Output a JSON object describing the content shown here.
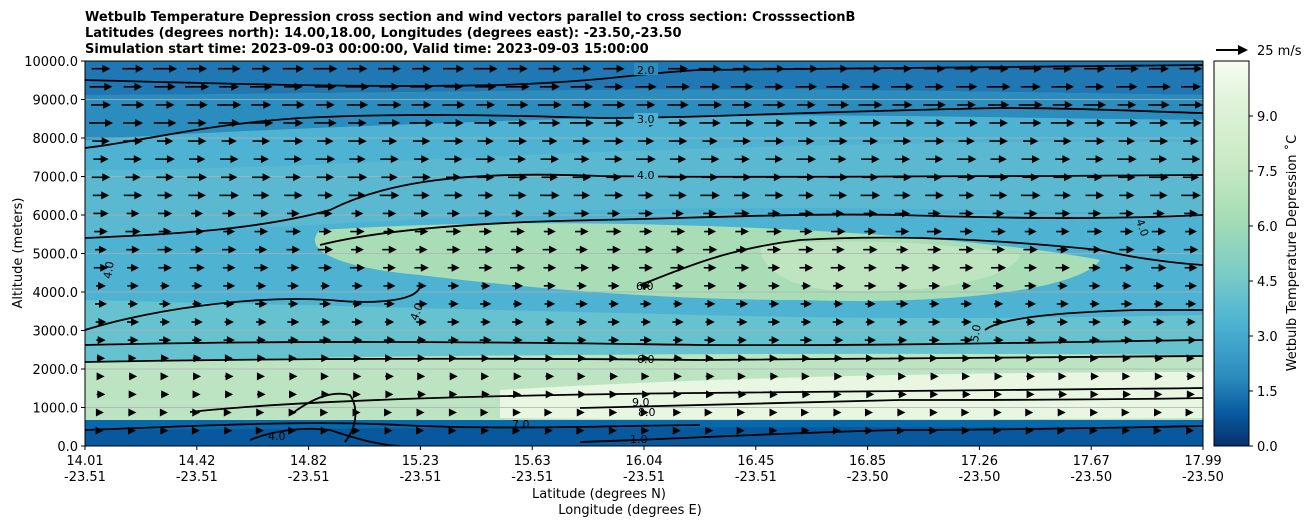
{
  "chart_data": {
    "type": "heatmap",
    "title_lines": [
      "Wetbulb Temperature Depression cross section and wind vectors parallel to cross section: CrosssectionB",
      "Latitudes (degrees north): 14.00,18.00, Longitudes (degrees east): -23.50,-23.50",
      "Simulation start time: 2023-09-03 00:00:00, Valid time: 2023-09-03 15:00:00"
    ],
    "ylabel": "Altitude (meters)",
    "xlabel_lines": [
      "Latitude (degrees N)",
      "Longitude (degrees E)"
    ],
    "ylim": [
      0,
      10000
    ],
    "y_ticks": [
      "0.0",
      "1000.0",
      "2000.0",
      "3000.0",
      "4000.0",
      "5000.0",
      "6000.0",
      "7000.0",
      "8000.0",
      "9000.0",
      "10000.0"
    ],
    "x_ticks": [
      {
        "lat": "14.01",
        "lon": "-23.51"
      },
      {
        "lat": "14.42",
        "lon": "-23.51"
      },
      {
        "lat": "14.82",
        "lon": "-23.51"
      },
      {
        "lat": "15.23",
        "lon": "-23.51"
      },
      {
        "lat": "15.63",
        "lon": "-23.51"
      },
      {
        "lat": "16.04",
        "lon": "-23.51"
      },
      {
        "lat": "16.45",
        "lon": "-23.51"
      },
      {
        "lat": "16.85",
        "lon": "-23.50"
      },
      {
        "lat": "17.26",
        "lon": "-23.50"
      },
      {
        "lat": "17.67",
        "lon": "-23.50"
      },
      {
        "lat": "17.99",
        "lon": "-23.50"
      }
    ],
    "colorbar": {
      "label": "Wetbulb Temperature Depression $^\\circ$C",
      "label_text": "Wetbulb Temperature Depression ˚C",
      "range": [
        0,
        10.5
      ],
      "tick_labels": [
        "0.0",
        "1.5",
        "3.0",
        "4.5",
        "6.0",
        "7.5",
        "9.0"
      ],
      "colormap": "GnBu_r"
    },
    "wind_key": {
      "label": "25 m/s"
    },
    "grid": true,
    "contour_labels": [
      "1.0",
      "2.0",
      "3.0",
      "4.0",
      "5.0",
      "6.0",
      "7.0",
      "8.0",
      "9.0"
    ],
    "field_description_values": {
      "surface_layer_0_500m": 1.0,
      "boundary_layer_1000_1800m": 8.5,
      "mid_level_2500_3500m": 5.0,
      "mid_level_4000_5000m_north": 7.0,
      "upper_7000m": 4.0,
      "top_9500m": 2.0
    }
  }
}
